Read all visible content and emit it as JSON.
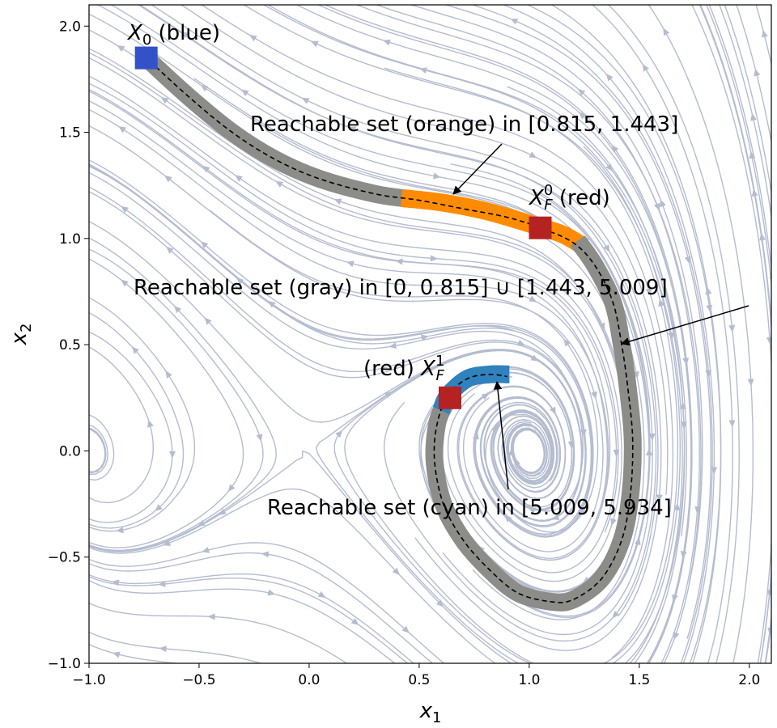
{
  "chart_data": {
    "type": "phase-portrait",
    "xlabel": "x",
    "xlabel_sub": "1",
    "ylabel": "x",
    "ylabel_sub": "2",
    "xlim": [
      -1.0,
      2.1
    ],
    "ylim": [
      -1.0,
      2.1
    ],
    "xticks": [
      -1.0,
      -0.5,
      0.0,
      0.5,
      1.0,
      1.5,
      2.0
    ],
    "yticks": [
      -1.0,
      -0.5,
      0.0,
      0.5,
      1.0,
      1.5,
      2.0
    ],
    "xtick_labels": [
      "−1.0",
      "−0.5",
      "0.0",
      "0.5",
      "1.0",
      "1.5",
      "2.0"
    ],
    "ytick_labels": [
      "−1.0",
      "−0.5",
      "0.0",
      "0.5",
      "1.0",
      "1.5",
      "2.0"
    ],
    "grid": false,
    "colors": {
      "streamline": "#b4bccf",
      "gray_set": "#8c8c89",
      "orange_set": "#ff8c00",
      "cyan_set": "#2f82bd",
      "start_square": "#3352c8",
      "target_square": "#b52222",
      "trajectory": "#000000"
    },
    "trajectory": {
      "style": "dashed",
      "points": [
        [
          -0.75,
          1.86
        ],
        [
          -0.55,
          1.67
        ],
        [
          -0.35,
          1.5
        ],
        [
          -0.15,
          1.37
        ],
        [
          0.05,
          1.28
        ],
        [
          0.3,
          1.21
        ],
        [
          0.5,
          1.18
        ],
        [
          0.7,
          1.14
        ],
        [
          0.9,
          1.1
        ],
        [
          1.05,
          1.05
        ],
        [
          1.2,
          0.98
        ],
        [
          1.3,
          0.87
        ],
        [
          1.38,
          0.7
        ],
        [
          1.42,
          0.5
        ],
        [
          1.45,
          0.28
        ],
        [
          1.47,
          0.05
        ],
        [
          1.46,
          -0.2
        ],
        [
          1.42,
          -0.42
        ],
        [
          1.33,
          -0.6
        ],
        [
          1.2,
          -0.7
        ],
        [
          1.1,
          -0.71
        ],
        [
          0.95,
          -0.67
        ],
        [
          0.82,
          -0.56
        ],
        [
          0.7,
          -0.42
        ],
        [
          0.61,
          -0.25
        ],
        [
          0.57,
          -0.05
        ],
        [
          0.58,
          0.12
        ],
        [
          0.63,
          0.26
        ],
        [
          0.72,
          0.34
        ],
        [
          0.82,
          0.36
        ],
        [
          0.9,
          0.35
        ]
      ]
    },
    "reachable_sets": [
      {
        "color": "gray",
        "points": [
          [
            -0.75,
            1.86
          ],
          [
            -0.55,
            1.67
          ],
          [
            -0.35,
            1.5
          ],
          [
            -0.15,
            1.37
          ],
          [
            0.05,
            1.28
          ],
          [
            0.3,
            1.21
          ],
          [
            0.47,
            1.185
          ]
        ]
      },
      {
        "color": "orange",
        "points": [
          [
            0.42,
            1.19
          ],
          [
            0.6,
            1.17
          ],
          [
            0.8,
            1.13
          ],
          [
            1.0,
            1.07
          ],
          [
            1.15,
            1.02
          ],
          [
            1.25,
            0.96
          ]
        ]
      },
      {
        "color": "gray",
        "points": [
          [
            1.22,
            0.99
          ],
          [
            1.3,
            0.87
          ],
          [
            1.38,
            0.7
          ],
          [
            1.42,
            0.5
          ],
          [
            1.45,
            0.28
          ],
          [
            1.47,
            0.05
          ],
          [
            1.46,
            -0.2
          ],
          [
            1.42,
            -0.42
          ],
          [
            1.33,
            -0.6
          ],
          [
            1.2,
            -0.7
          ],
          [
            1.1,
            -0.71
          ],
          [
            0.95,
            -0.67
          ],
          [
            0.82,
            -0.56
          ],
          [
            0.7,
            -0.42
          ],
          [
            0.61,
            -0.25
          ],
          [
            0.57,
            -0.05
          ],
          [
            0.58,
            0.12
          ],
          [
            0.61,
            0.21
          ]
        ]
      },
      {
        "color": "cyan",
        "points": [
          [
            0.6,
            0.19
          ],
          [
            0.63,
            0.26
          ],
          [
            0.72,
            0.34
          ],
          [
            0.82,
            0.36
          ],
          [
            0.91,
            0.36
          ]
        ]
      }
    ],
    "squares": [
      {
        "name": "X0",
        "color": "blue",
        "x": -0.74,
        "y": 1.85
      },
      {
        "name": "XF0",
        "color": "red",
        "x": 1.05,
        "y": 1.05
      },
      {
        "name": "XF1",
        "color": "red",
        "x": 0.64,
        "y": 0.25
      }
    ],
    "annotations": {
      "x0_label": {
        "main": "X",
        "sub": "0",
        "tail": " (blue)"
      },
      "xf0_label": {
        "main": "X",
        "sup": "0",
        "sub": "F",
        "tail": " (red)"
      },
      "xf1_label": {
        "head": "(red) ",
        "main": "X",
        "sup": "1",
        "sub": "F"
      },
      "orange_text": "Reachable set (orange) in [0.815, 1.443]",
      "gray_text": "Reachable set (gray) in [0, 0.815] ∪ [1.443, 5.009]",
      "cyan_text": "Reachable set (cyan) in [5.009, 5.934]"
    }
  }
}
